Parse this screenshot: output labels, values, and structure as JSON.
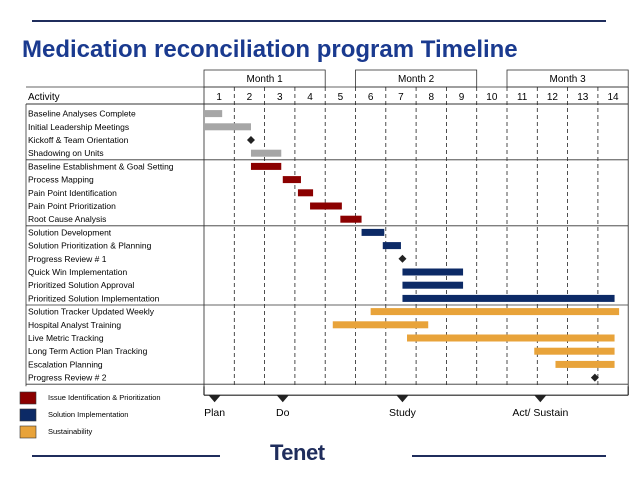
{
  "title": "Medication reconciliation program Timeline",
  "header": {
    "activity_label": "Activity",
    "months": [
      "Month 1",
      "Month 2",
      "Month 3"
    ],
    "weeks": [
      "1",
      "2",
      "3",
      "4",
      "5",
      "6",
      "7",
      "8",
      "9",
      "10",
      "11",
      "12",
      "13",
      "14"
    ]
  },
  "colors": {
    "gray": "#a6a6a6",
    "red": "#8b0000",
    "navy": "#0c2a66",
    "orange": "#e8a33a",
    "rule": "#1f2d5c"
  },
  "activities": [
    {
      "label": "Baseline Analyses Complete",
      "type": "bar",
      "color": "gray",
      "start": 1.0,
      "end": 1.6
    },
    {
      "label": "Initial Leadership Meetings",
      "type": "bar",
      "color": "gray",
      "start": 1.0,
      "end": 2.55
    },
    {
      "label": "Kickoff & Team Orientation",
      "type": "milestone",
      "at": 2.55
    },
    {
      "label": "Shadowing on Units",
      "type": "bar",
      "color": "gray",
      "start": 2.55,
      "end": 3.55
    },
    {
      "label": "Baseline Establishment & Goal Setting",
      "type": "bar",
      "color": "red",
      "start": 2.55,
      "end": 3.55
    },
    {
      "label": "Process Mapping",
      "type": "bar",
      "color": "red",
      "start": 3.6,
      "end": 4.2
    },
    {
      "label": "Pain Point Identification",
      "type": "bar",
      "color": "red",
      "start": 4.1,
      "end": 4.6
    },
    {
      "label": "Pain   Point Prioritization",
      "type": "bar",
      "color": "red",
      "start": 4.5,
      "end": 5.55
    },
    {
      "label": "Root Cause Analysis",
      "type": "bar",
      "color": "red",
      "start": 5.5,
      "end": 6.2
    },
    {
      "label": "Solution Development",
      "type": "bar",
      "color": "navy",
      "start": 6.2,
      "end": 6.95
    },
    {
      "label": "Solution Prioritization & Planning",
      "type": "bar",
      "color": "navy",
      "start": 6.9,
      "end": 7.5
    },
    {
      "label": "Progress Review # 1",
      "type": "milestone",
      "at": 7.55
    },
    {
      "label": "Quick Win Implementation",
      "type": "bar",
      "color": "navy",
      "start": 7.55,
      "end": 9.55
    },
    {
      "label": "Prioritized Solution Approval",
      "type": "bar",
      "color": "navy",
      "start": 7.55,
      "end": 9.55
    },
    {
      "label": "Prioritized Solution Implementation",
      "type": "bar",
      "color": "navy",
      "start": 7.55,
      "end": 14.55
    },
    {
      "label": "Solution Tracker Updated Weekly",
      "type": "bar",
      "color": "orange",
      "start": 6.5,
      "end": 14.7
    },
    {
      "label": "Hospital Analyst Training",
      "type": "bar",
      "color": "orange",
      "start": 5.25,
      "end": 8.4
    },
    {
      "label": "Live Metric Tracking",
      "type": "bar",
      "color": "orange",
      "start": 7.7,
      "end": 14.55
    },
    {
      "label": "Long Term Action Plan Tracking",
      "type": "bar",
      "color": "orange",
      "start": 11.9,
      "end": 14.55
    },
    {
      "label": "Escalation Planning",
      "type": "bar",
      "color": "orange",
      "start": 12.6,
      "end": 14.55
    },
    {
      "label": "Progress Review # 2",
      "type": "milestone",
      "at": 13.9
    }
  ],
  "phases": [
    {
      "label": "Plan",
      "at": 1.35
    },
    {
      "label": "Do",
      "at": 3.6
    },
    {
      "label": "Study",
      "at": 7.55
    },
    {
      "label": "Act/ Sustain",
      "at": 12.1
    }
  ],
  "legend": [
    {
      "label": "Issue Identification & Prioritization",
      "color": "red"
    },
    {
      "label": "Solution Implementation",
      "color": "navy"
    },
    {
      "label": "Sustainability",
      "color": "orange"
    }
  ],
  "logo": "Tenet"
}
